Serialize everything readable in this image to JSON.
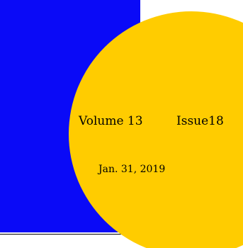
{
  "masthead": {
    "volume": "Volume 13",
    "issue": "Issue18",
    "date": "Jan. 31, 2019"
  },
  "colors": {
    "panel": "#0a0af7",
    "circle": "#ffcc00"
  }
}
